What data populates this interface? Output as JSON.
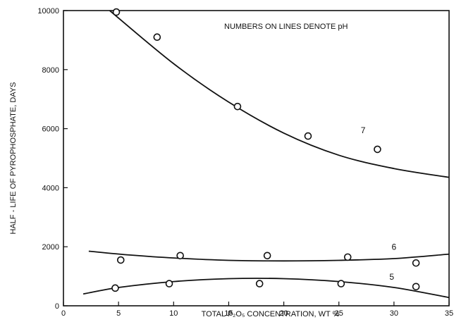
{
  "chart_data": {
    "type": "scatter",
    "title": "",
    "annotation": "NUMBERS ON LINES DENOTE pH",
    "xlabel": "TOTAL P₂O₅ CONCENTRATION, WT %",
    "ylabel": "HALF - LIFE OF PYROPHOSPHATE, DAYS",
    "xlim": [
      0,
      35
    ],
    "ylim": [
      0,
      10000
    ],
    "x_ticks": [
      0,
      5,
      10,
      15,
      20,
      25,
      30,
      35
    ],
    "y_ticks": [
      0,
      2000,
      4000,
      6000,
      8000,
      10000
    ],
    "x_tick_labels": [
      "0",
      "5",
      "10",
      "15",
      "20",
      "25",
      "30",
      "35"
    ],
    "y_tick_labels": [
      "0",
      "2000",
      "4000",
      "6000",
      "8000",
      "10000"
    ],
    "grid": false,
    "legend": "none",
    "series": [
      {
        "name": "7",
        "points": [
          {
            "x": 4.8,
            "y": 9950
          },
          {
            "x": 8.5,
            "y": 9100
          },
          {
            "x": 15.8,
            "y": 6750
          },
          {
            "x": 22.2,
            "y": 5750
          },
          {
            "x": 28.5,
            "y": 5300
          }
        ],
        "curve": [
          {
            "x": 4.2,
            "y": 10000
          },
          {
            "x": 10,
            "y": 8200
          },
          {
            "x": 15,
            "y": 6900
          },
          {
            "x": 20,
            "y": 5850
          },
          {
            "x": 25,
            "y": 5100
          },
          {
            "x": 30,
            "y": 4650
          },
          {
            "x": 35,
            "y": 4350
          }
        ]
      },
      {
        "name": "6",
        "points": [
          {
            "x": 5.2,
            "y": 1550
          },
          {
            "x": 10.6,
            "y": 1700
          },
          {
            "x": 18.5,
            "y": 1700
          },
          {
            "x": 25.8,
            "y": 1650
          },
          {
            "x": 32.0,
            "y": 1450
          }
        ],
        "curve": [
          {
            "x": 2.3,
            "y": 1850
          },
          {
            "x": 6,
            "y": 1720
          },
          {
            "x": 10,
            "y": 1620
          },
          {
            "x": 15,
            "y": 1540
          },
          {
            "x": 20,
            "y": 1520
          },
          {
            "x": 25,
            "y": 1540
          },
          {
            "x": 30,
            "y": 1600
          },
          {
            "x": 35,
            "y": 1750
          }
        ]
      },
      {
        "name": "5",
        "points": [
          {
            "x": 4.7,
            "y": 600
          },
          {
            "x": 9.6,
            "y": 750
          },
          {
            "x": 17.8,
            "y": 750
          },
          {
            "x": 25.2,
            "y": 750
          },
          {
            "x": 32.0,
            "y": 650
          }
        ],
        "curve": [
          {
            "x": 1.8,
            "y": 400
          },
          {
            "x": 5,
            "y": 620
          },
          {
            "x": 10,
            "y": 820
          },
          {
            "x": 15,
            "y": 920
          },
          {
            "x": 20,
            "y": 920
          },
          {
            "x": 25,
            "y": 820
          },
          {
            "x": 30,
            "y": 620
          },
          {
            "x": 35,
            "y": 280
          }
        ]
      }
    ],
    "line_labels": [
      {
        "text": "7",
        "x": 27.2,
        "y": 5850
      },
      {
        "text": "6",
        "x": 30.0,
        "y": 1900
      },
      {
        "text": "5",
        "x": 29.8,
        "y": 880
      }
    ]
  }
}
